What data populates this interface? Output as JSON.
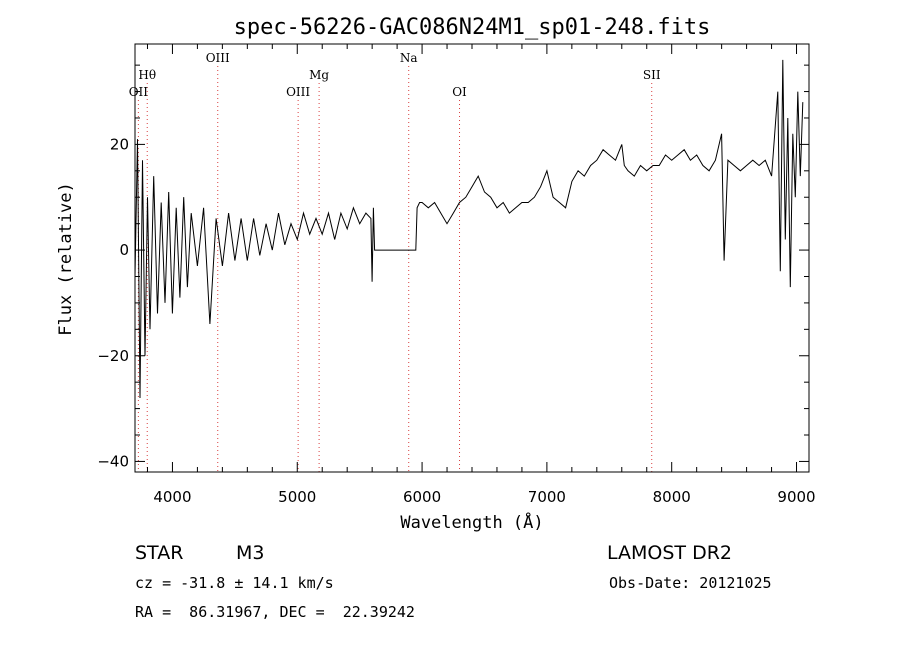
{
  "chart_data": {
    "type": "line",
    "title": "spec-56226-GAC086N24M1_sp01-248.fits",
    "xlabel": "Wavelength (Å)",
    "ylabel": "Flux (relative)",
    "xlim": [
      3700,
      9100
    ],
    "ylim": [
      -42,
      39
    ],
    "xticks": [
      4000,
      5000,
      6000,
      7000,
      8000,
      9000
    ],
    "yticks": [
      -40,
      -20,
      0,
      20
    ],
    "grid": false,
    "reference_lines": [
      {
        "label": "OII",
        "x": 3727
      },
      {
        "label": "Hθ",
        "x": 3798
      },
      {
        "label": "OIII",
        "x": 4363
      },
      {
        "label": "OIII",
        "x": 5007
      },
      {
        "label": "Mg",
        "x": 5175
      },
      {
        "label": "Na",
        "x": 5893
      },
      {
        "label": "OI",
        "x": 6300
      },
      {
        "label": "SII",
        "x": 7840
      }
    ],
    "series": [
      {
        "color": "#000000",
        "x": [
          3700,
          3720,
          3740,
          3760,
          3780,
          3800,
          3820,
          3850,
          3880,
          3910,
          3940,
          3970,
          4000,
          4030,
          4060,
          4090,
          4120,
          4150,
          4200,
          4250,
          4300,
          4350,
          4400,
          4450,
          4500,
          4550,
          4600,
          4650,
          4700,
          4750,
          4800,
          4850,
          4900,
          4950,
          5000,
          5050,
          5100,
          5150,
          5200,
          5250,
          5300,
          5350,
          5400,
          5450,
          5500,
          5550,
          5590,
          5600,
          5610,
          5620,
          5650,
          5700,
          5800,
          5900,
          5950,
          5960,
          5980,
          6000,
          6050,
          6100,
          6150,
          6200,
          6250,
          6300,
          6350,
          6400,
          6450,
          6500,
          6550,
          6600,
          6650,
          6700,
          6750,
          6800,
          6850,
          6900,
          6950,
          7000,
          7050,
          7100,
          7150,
          7200,
          7250,
          7300,
          7350,
          7400,
          7450,
          7500,
          7550,
          7600,
          7620,
          7650,
          7700,
          7750,
          7800,
          7850,
          7900,
          7950,
          8000,
          8050,
          8100,
          8150,
          8200,
          8250,
          8300,
          8350,
          8400,
          8420,
          8450,
          8500,
          8550,
          8600,
          8650,
          8700,
          8750,
          8800,
          8850,
          8870,
          8890,
          8910,
          8930,
          8950,
          8970,
          8990,
          9010,
          9030,
          9050
        ],
        "values": [
          -5,
          21,
          -28,
          17,
          -20,
          10,
          -15,
          14,
          -12,
          9,
          -10,
          11,
          -12,
          8,
          -9,
          10,
          -7,
          7,
          -3,
          8,
          -14,
          6,
          -3,
          7,
          -2,
          6,
          -2,
          6,
          -1,
          5,
          0,
          7,
          1,
          5,
          2,
          7,
          3,
          6,
          3,
          7,
          2,
          7,
          4,
          8,
          5,
          7,
          6,
          -6,
          8,
          0,
          0,
          0,
          0,
          0,
          0,
          8,
          9,
          9,
          8,
          9,
          7,
          5,
          7,
          9,
          10,
          12,
          14,
          11,
          10,
          8,
          9,
          7,
          8,
          9,
          9,
          10,
          12,
          15,
          10,
          9,
          8,
          13,
          15,
          14,
          16,
          17,
          19,
          18,
          17,
          20,
          16,
          15,
          14,
          16,
          15,
          16,
          16,
          18,
          17,
          18,
          19,
          17,
          18,
          16,
          15,
          17,
          22,
          -2,
          17,
          16,
          15,
          16,
          17,
          16,
          17,
          14,
          30,
          -4,
          36,
          2,
          25,
          -7,
          22,
          10,
          30,
          14,
          28
        ]
      }
    ]
  },
  "info": {
    "object_class": "STAR",
    "subclass": "M3",
    "survey": "LAMOST DR2",
    "velocity": "cz = -31.8 ± 14.1 km/s",
    "obs_date": "Obs-Date: 20121025",
    "coords": "RA =  86.31967, DEC =  22.39242"
  }
}
